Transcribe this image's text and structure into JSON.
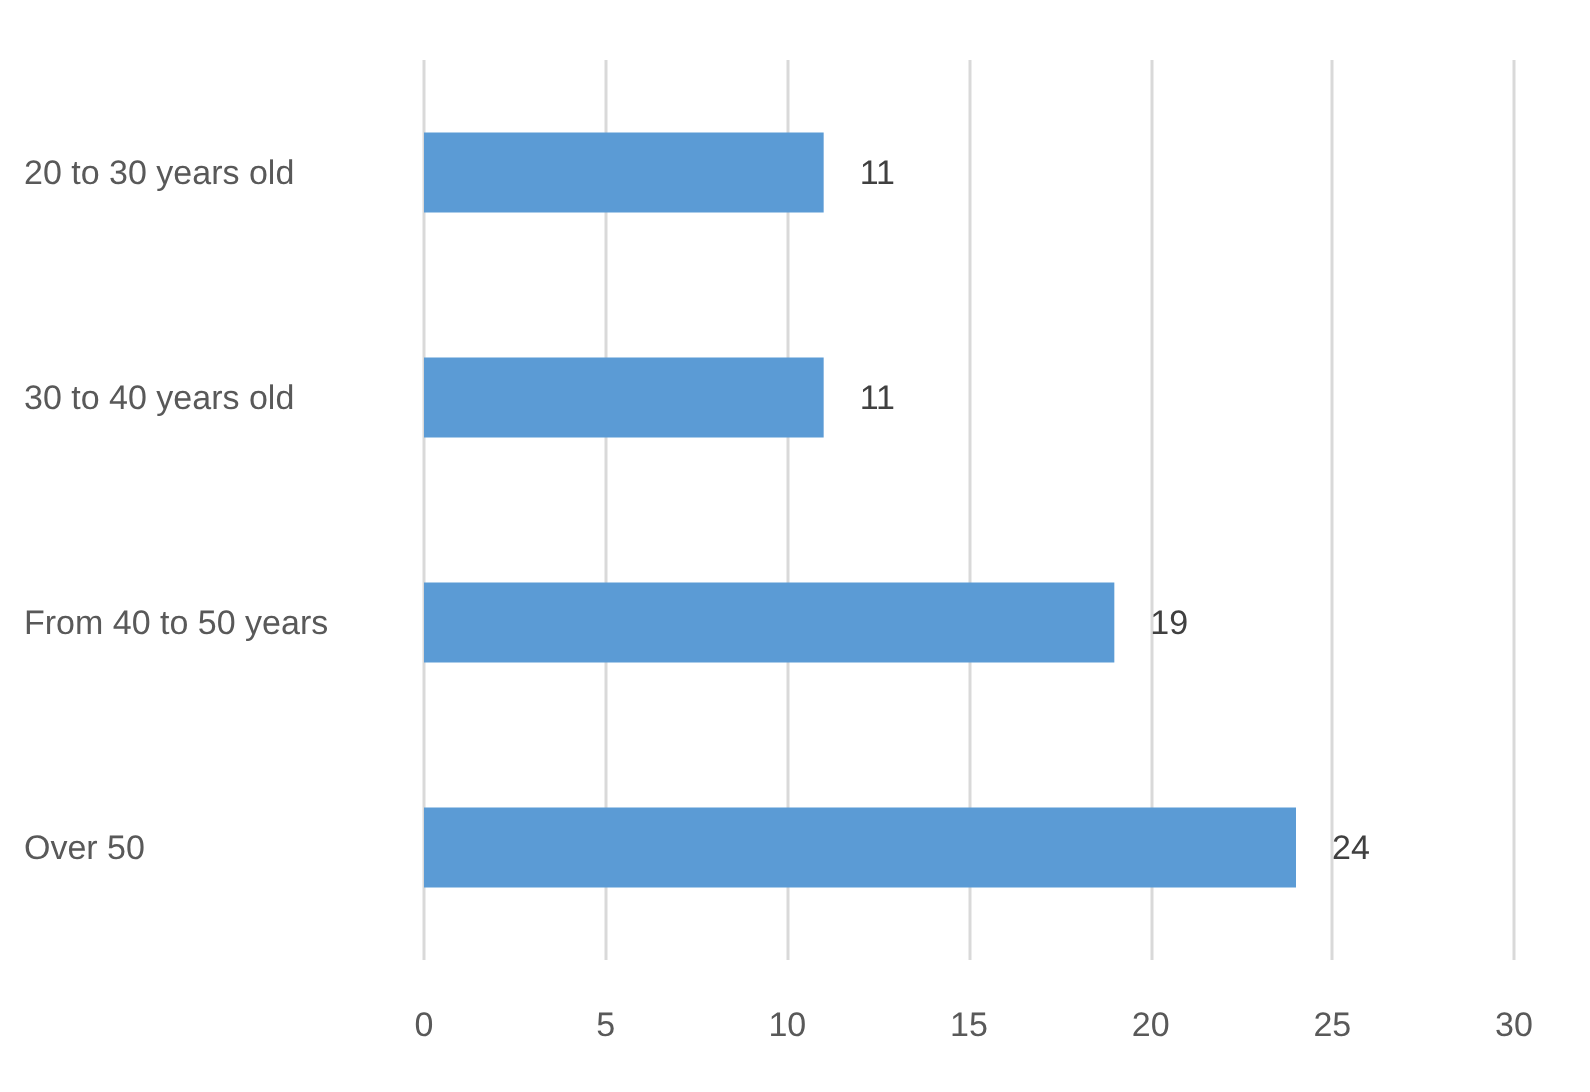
{
  "chart_data": {
    "type": "bar",
    "orientation": "horizontal",
    "categories": [
      "20 to 30 years old",
      "30 to 40 years old",
      "From 40 to 50 years",
      "Over 50"
    ],
    "values": [
      11,
      11,
      19,
      24
    ],
    "color": "#5b9bd5",
    "xlim": [
      0,
      30
    ],
    "xticks": [
      0,
      5,
      10,
      15,
      20,
      25,
      30
    ],
    "grid": "x",
    "data_labels": true
  }
}
